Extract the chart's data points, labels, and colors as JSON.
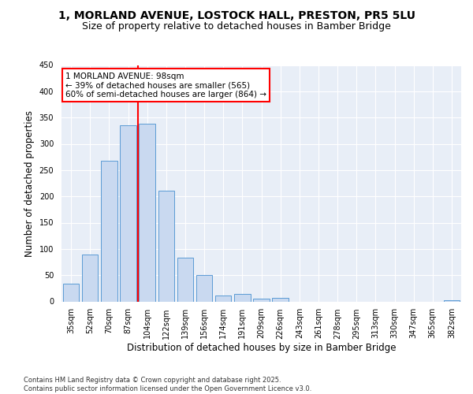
{
  "title1": "1, MORLAND AVENUE, LOSTOCK HALL, PRESTON, PR5 5LU",
  "title2": "Size of property relative to detached houses in Bamber Bridge",
  "xlabel": "Distribution of detached houses by size in Bamber Bridge",
  "ylabel": "Number of detached properties",
  "categories": [
    "35sqm",
    "52sqm",
    "70sqm",
    "87sqm",
    "104sqm",
    "122sqm",
    "139sqm",
    "156sqm",
    "174sqm",
    "191sqm",
    "209sqm",
    "226sqm",
    "243sqm",
    "261sqm",
    "278sqm",
    "295sqm",
    "313sqm",
    "330sqm",
    "347sqm",
    "365sqm",
    "382sqm"
  ],
  "values": [
    34,
    90,
    268,
    335,
    338,
    211,
    83,
    51,
    11,
    15,
    6,
    7,
    0,
    0,
    0,
    0,
    0,
    0,
    0,
    0,
    3
  ],
  "bar_color": "#c9d9f0",
  "bar_edge_color": "#5b9bd5",
  "vline_color": "red",
  "vline_x_index": 3.5,
  "annotation_text": "1 MORLAND AVENUE: 98sqm\n← 39% of detached houses are smaller (565)\n60% of semi-detached houses are larger (864) →",
  "annotation_box_color": "white",
  "annotation_box_edge": "red",
  "footer": "Contains HM Land Registry data © Crown copyright and database right 2025.\nContains public sector information licensed under the Open Government Licence v3.0.",
  "ylim": [
    0,
    450
  ],
  "yticks": [
    0,
    50,
    100,
    150,
    200,
    250,
    300,
    350,
    400,
    450
  ],
  "bg_color": "#e8eef7",
  "fig_bg_color": "white",
  "title1_fontsize": 10,
  "title2_fontsize": 9,
  "xlabel_fontsize": 8.5,
  "ylabel_fontsize": 8.5,
  "tick_fontsize": 7,
  "footer_fontsize": 6,
  "annot_fontsize": 7.5
}
